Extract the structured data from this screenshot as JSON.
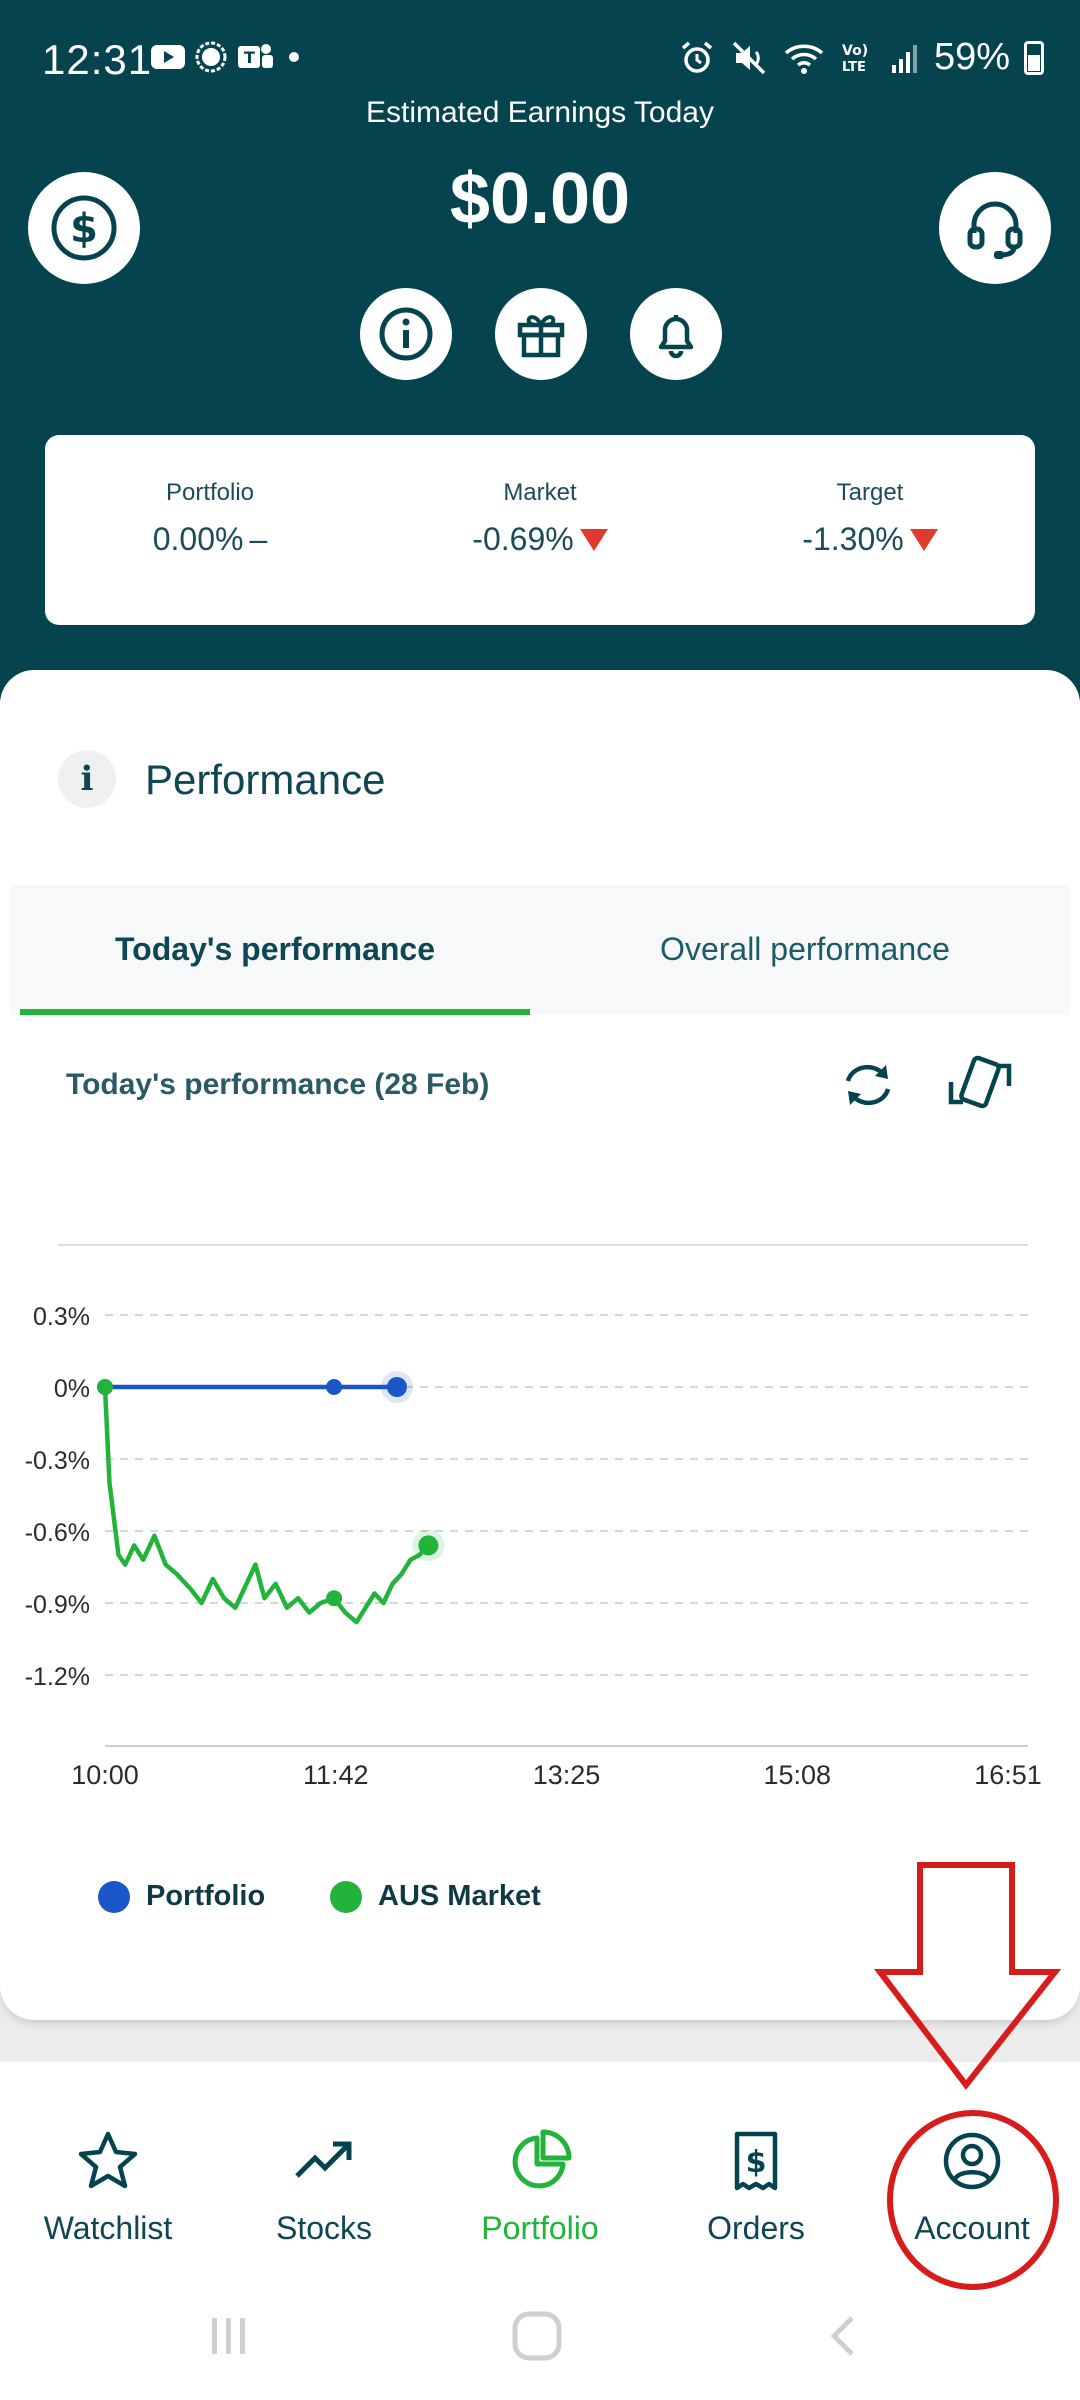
{
  "status_bar": {
    "time": "12:31",
    "battery": "59%"
  },
  "header": {
    "earnings_label": "Estimated Earnings Today",
    "earnings_value": "$0.00"
  },
  "stats": [
    {
      "label": "Portfolio",
      "value": "0.00%",
      "trend": "flat"
    },
    {
      "label": "Market",
      "value": "-0.69%",
      "trend": "down"
    },
    {
      "label": "Target",
      "value": "-1.30%",
      "trend": "down"
    }
  ],
  "performance": {
    "info_glyph": "i",
    "title": "Performance",
    "tabs": [
      {
        "label": "Today's performance",
        "active": true
      },
      {
        "label": "Overall performance",
        "active": false
      }
    ],
    "chart_heading": "Today's performance (28 Feb)"
  },
  "chart_data": {
    "type": "line",
    "y_ticks": [
      "0.3%",
      "0%",
      "-0.3%",
      "-0.6%",
      "-0.9%",
      "-1.2%"
    ],
    "x_ticks": [
      "10:00",
      "11:42",
      "13:25",
      "15:08",
      "16:51"
    ],
    "ylim": [
      -1.2,
      0.3
    ],
    "x_range_minutes": [
      600,
      1011
    ],
    "series": [
      {
        "name": "Portfolio",
        "color": "#1a56c7",
        "points": [
          [
            600,
            0
          ],
          [
            610,
            0
          ],
          [
            640,
            0
          ],
          [
            680,
            0
          ],
          [
            700,
            0
          ],
          [
            702,
            0
          ],
          [
            730,
            0
          ]
        ]
      },
      {
        "name": "AUS Market",
        "color": "#22b33a",
        "points": [
          [
            600,
            0
          ],
          [
            602,
            -0.4
          ],
          [
            606,
            -0.7
          ],
          [
            609,
            -0.74
          ],
          [
            613,
            -0.66
          ],
          [
            617,
            -0.72
          ],
          [
            622,
            -0.62
          ],
          [
            627,
            -0.74
          ],
          [
            632,
            -0.78
          ],
          [
            638,
            -0.84
          ],
          [
            643,
            -0.9
          ],
          [
            648,
            -0.8
          ],
          [
            653,
            -0.88
          ],
          [
            658,
            -0.92
          ],
          [
            663,
            -0.82
          ],
          [
            667,
            -0.74
          ],
          [
            671,
            -0.88
          ],
          [
            676,
            -0.82
          ],
          [
            681,
            -0.92
          ],
          [
            686,
            -0.88
          ],
          [
            691,
            -0.94
          ],
          [
            696,
            -0.9
          ],
          [
            702,
            -0.88
          ],
          [
            707,
            -0.94
          ],
          [
            712,
            -0.98
          ],
          [
            716,
            -0.92
          ],
          [
            720,
            -0.86
          ],
          [
            724,
            -0.9
          ],
          [
            728,
            -0.82
          ],
          [
            732,
            -0.78
          ],
          [
            736,
            -0.72
          ],
          [
            740,
            -0.7
          ],
          [
            744,
            -0.66
          ]
        ]
      }
    ],
    "legend": [
      {
        "name": "Portfolio",
        "color": "#1a56c7"
      },
      {
        "name": "AUS Market",
        "color": "#22b33a"
      }
    ]
  },
  "bottom_nav": [
    {
      "label": "Watchlist",
      "icon": "star-icon",
      "active": false
    },
    {
      "label": "Stocks",
      "icon": "trending-up-icon",
      "active": false
    },
    {
      "label": "Portfolio",
      "icon": "pie-chart-icon",
      "active": true
    },
    {
      "label": "Orders",
      "icon": "receipt-dollar-icon",
      "active": false
    },
    {
      "label": "Account",
      "icon": "user-circle-icon",
      "active": false
    }
  ],
  "colors": {
    "header_bg": "#05444f",
    "accent_green": "#22b33a",
    "down_red": "#e0392f",
    "annotation_red": "#d81b1b"
  }
}
